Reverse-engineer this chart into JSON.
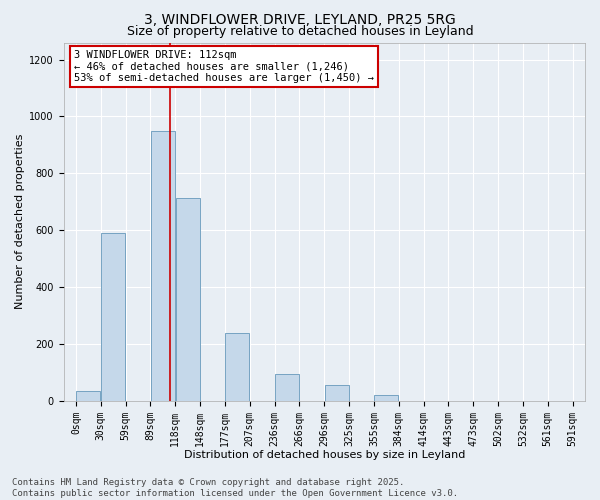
{
  "title": "3, WINDFLOWER DRIVE, LEYLAND, PR25 5RG",
  "subtitle": "Size of property relative to detached houses in Leyland",
  "xlabel": "Distribution of detached houses by size in Leyland",
  "ylabel": "Number of detached properties",
  "bin_labels": [
    "0sqm",
    "30sqm",
    "59sqm",
    "89sqm",
    "118sqm",
    "148sqm",
    "177sqm",
    "207sqm",
    "236sqm",
    "266sqm",
    "296sqm",
    "325sqm",
    "355sqm",
    "384sqm",
    "414sqm",
    "443sqm",
    "473sqm",
    "502sqm",
    "532sqm",
    "561sqm",
    "591sqm"
  ],
  "bar_heights": [
    35,
    590,
    0,
    950,
    715,
    0,
    240,
    0,
    95,
    0,
    55,
    0,
    20,
    0,
    0,
    0,
    0,
    0,
    0,
    0
  ],
  "bar_color": "#c5d8ea",
  "bar_edge_color": "#6699bb",
  "vline_x": 3.8,
  "vline_color": "#cc0000",
  "ylim": [
    0,
    1260
  ],
  "yticks": [
    0,
    200,
    400,
    600,
    800,
    1000,
    1200
  ],
  "annotation_text": "3 WINDFLOWER DRIVE: 112sqm\n← 46% of detached houses are smaller (1,246)\n53% of semi-detached houses are larger (1,450) →",
  "annotation_box_color": "#ffffff",
  "annotation_box_edge": "#cc0000",
  "footer_text": "Contains HM Land Registry data © Crown copyright and database right 2025.\nContains public sector information licensed under the Open Government Licence v3.0.",
  "background_color": "#e8eef4",
  "plot_background": "#e8eef4",
  "grid_color": "#ffffff",
  "title_fontsize": 10,
  "subtitle_fontsize": 9,
  "axis_label_fontsize": 8,
  "tick_fontsize": 7,
  "annotation_fontsize": 7.5,
  "footer_fontsize": 6.5
}
